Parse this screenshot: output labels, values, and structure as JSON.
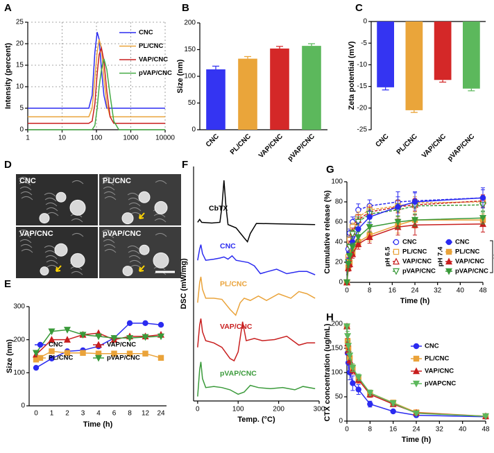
{
  "chart_data": [
    {
      "type": "line",
      "panel": "A",
      "ylabel": "Intensity (percent)",
      "xscale": "log",
      "x": [
        1,
        10,
        40,
        60,
        75,
        90,
        105,
        120,
        140,
        165,
        200,
        250,
        320,
        450,
        700,
        10000
      ],
      "xlim": [
        1,
        10000
      ],
      "xticks": [
        1,
        10,
        100,
        1000,
        10000
      ],
      "ylim": [
        0,
        25
      ],
      "yticks": [
        0,
        5,
        10,
        15,
        20,
        25
      ],
      "grid": true,
      "legend": "upper right",
      "series": [
        {
          "name": "CNC",
          "color": "#2b2bf0",
          "values": [
            5,
            5,
            5,
            5,
            8,
            18,
            22.7,
            21,
            14,
            8,
            5,
            5,
            5,
            5,
            5,
            5
          ]
        },
        {
          "name": "PL/CNC",
          "color": "#eaa33a",
          "values": [
            3,
            3,
            3,
            3,
            5,
            12,
            18,
            21,
            19,
            12,
            6,
            3,
            3,
            3,
            3,
            3
          ]
        },
        {
          "name": "VAP/CNC",
          "color": "#c81e1e",
          "values": [
            1.5,
            1.5,
            1.5,
            1.5,
            2,
            6,
            13,
            17.5,
            19,
            16,
            9,
            3,
            1.5,
            1.5,
            1.5,
            1.5
          ]
        },
        {
          "name": "pVAP/CNC",
          "color": "#44aa44",
          "values": [
            0,
            0,
            0,
            0,
            0,
            1,
            5,
            10,
            14,
            16.5,
            14,
            8,
            2,
            0,
            0,
            0
          ]
        }
      ]
    },
    {
      "type": "bar",
      "panel": "B",
      "ylabel": "Size (nm)",
      "categories": [
        "CNC",
        "PL/CNC",
        "VAP/CNC",
        "pVAP/CNC"
      ],
      "values": [
        113,
        133,
        152,
        157
      ],
      "errors": [
        6,
        4,
        4,
        4
      ],
      "colors": [
        "#3434f2",
        "#eaa53a",
        "#d42828",
        "#5cb85c"
      ],
      "ylim": [
        0,
        200
      ],
      "yticks": [
        0,
        50,
        100,
        150,
        200
      ]
    },
    {
      "type": "bar",
      "panel": "C",
      "ylabel": "Zeta potential (mV)",
      "categories": [
        "CNC",
        "PL/CNC",
        "VAP/CNC",
        "pVAP/CNC"
      ],
      "values": [
        -15.2,
        -20.5,
        -13.5,
        -15.5
      ],
      "errors": [
        0.6,
        0.5,
        0.5,
        0.5
      ],
      "colors": [
        "#3434f2",
        "#eaa53a",
        "#d42828",
        "#5cb85c"
      ],
      "ylim": [
        -25,
        0
      ],
      "yticks": [
        0,
        -5,
        -10,
        -15,
        -20,
        -25
      ]
    },
    {
      "type": "image",
      "panel": "D",
      "labels": [
        "CNC",
        "PL/CNC",
        "VAP/CNC",
        "pVAP/CNC"
      ]
    },
    {
      "type": "line",
      "panel": "E",
      "ylabel": "Size (nm)",
      "xlabel": "Time (h)",
      "categories": [
        "0",
        "1",
        "2",
        "3",
        "4",
        "6",
        "8",
        "12",
        "24"
      ],
      "ylim": [
        0,
        300
      ],
      "yticks": [
        0,
        100,
        200,
        300
      ],
      "legend": "upper left",
      "series": [
        {
          "name": "CNC",
          "color": "#2b2bf0",
          "marker": "circle",
          "values": [
            115,
            143,
            165,
            168,
            180,
            205,
            250,
            250,
            245
          ]
        },
        {
          "name": "PL/CNC",
          "color": "#eaa33a",
          "marker": "square",
          "values": [
            140,
            165,
            160,
            160,
            158,
            158,
            158,
            158,
            145
          ]
        },
        {
          "name": "VAP/CNC",
          "color": "#c81e1e",
          "marker": "triangle",
          "values": [
            155,
            200,
            200,
            215,
            220,
            200,
            210,
            210,
            215
          ]
        },
        {
          "name": "pVAP/CNC",
          "color": "#3a9a3a",
          "marker": "triangle-down",
          "values": [
            160,
            225,
            230,
            215,
            210,
            205,
            205,
            208,
            210
          ]
        }
      ]
    },
    {
      "type": "line",
      "panel": "F",
      "ylabel": "DSC (mW/mg)",
      "xlabel": "Temp. (°C)",
      "xlim": [
        -10,
        300
      ],
      "xticks": [
        0,
        100,
        200,
        300
      ],
      "ylim": [
        0,
        105
      ],
      "labels": "inline",
      "series": [
        {
          "name": "CbTX",
          "color": "#000000",
          "x": [
            0,
            5,
            10,
            35,
            55,
            60,
            65,
            70,
            75,
            95,
            115,
            123,
            130,
            145,
            290
          ],
          "values": [
            80,
            81.3,
            80,
            79.7,
            80,
            87,
            98.8,
            87,
            79,
            77.5,
            73,
            71.3,
            75,
            79.5,
            79
          ]
        },
        {
          "name": "CNC",
          "color": "#2b2bf0",
          "x": [
            0,
            5,
            8,
            12,
            20,
            40,
            55,
            65,
            75,
            85,
            95,
            110,
            125,
            140,
            155,
            170,
            195,
            220,
            250,
            270,
            290
          ],
          "values": [
            63,
            68,
            70,
            66,
            63,
            63.5,
            64,
            64.5,
            63.5,
            65,
            63,
            62.5,
            62,
            60.5,
            57,
            57.8,
            59,
            57,
            58,
            58,
            56.5
          ]
        },
        {
          "name": "PL/CNC",
          "color": "#eaa33a",
          "x": [
            0,
            5,
            8,
            12,
            20,
            40,
            60,
            80,
            94,
            105,
            115,
            130,
            150,
            170,
            200,
            230,
            250,
            270,
            290
          ],
          "values": [
            44,
            53,
            55.6,
            50,
            46,
            46,
            45.5,
            41,
            38.4,
            44,
            46,
            45,
            47,
            45,
            48,
            46,
            49,
            48,
            46
          ]
        },
        {
          "name": "VAP/CNC",
          "color": "#c81e1e",
          "x": [
            0,
            5,
            8,
            12,
            20,
            40,
            60,
            80,
            90,
            100,
            111,
            120,
            140,
            160,
            190,
            220,
            250,
            270,
            290
          ],
          "values": [
            24,
            34,
            36.9,
            31,
            27,
            26,
            24,
            19,
            18,
            22,
            35.5,
            27,
            28,
            27,
            27.5,
            29,
            25,
            26,
            26
          ]
        },
        {
          "name": "pVAP/CNC",
          "color": "#3a9a3a",
          "x": [
            0,
            5,
            8,
            12,
            20,
            40,
            60,
            80,
            100,
            115,
            130,
            150,
            180,
            210,
            240,
            260,
            290
          ],
          "values": [
            2,
            14,
            17.5,
            10,
            6,
            6.5,
            6,
            5,
            3,
            4,
            7,
            6,
            5.5,
            6,
            5,
            6.5,
            5.5
          ]
        }
      ]
    },
    {
      "type": "line",
      "panel": "G",
      "ylabel": "Cumulative release (%)",
      "xlabel": "Time (h)",
      "x": [
        0,
        0.5,
        1,
        2,
        4,
        8,
        18,
        24,
        48
      ],
      "xlim": [
        0,
        48
      ],
      "xticks": [
        0,
        8,
        16,
        24,
        32,
        40,
        48
      ],
      "ylim": [
        0,
        100
      ],
      "yticks": [
        0,
        20,
        40,
        60,
        80,
        100
      ],
      "legend": "lower right",
      "legend_groups": [
        "pH 6.5",
        "pH 7.4"
      ],
      "annotation": "**",
      "series": [
        {
          "name": "CNC",
          "color": "#2b2bf0",
          "marker": "circle",
          "marker_fill": "open",
          "linestyle": "dashed",
          "values": [
            0,
            33,
            49,
            60,
            72,
            76,
            80,
            81,
            84
          ],
          "errors": [
            0,
            3,
            4,
            5,
            6,
            6,
            10,
            8,
            8
          ]
        },
        {
          "name": "PL/CNC",
          "color": "#eaa33a",
          "marker": "square",
          "marker_fill": "open",
          "linestyle": "dashed",
          "values": [
            0,
            25,
            42,
            55,
            65,
            72,
            76,
            79,
            80
          ],
          "errors": [
            0,
            3,
            4,
            4,
            5,
            5,
            6,
            6,
            6
          ]
        },
        {
          "name": "VAP/CNC",
          "color": "#c81e1e",
          "marker": "triangle",
          "marker_fill": "open",
          "linestyle": "dashed",
          "values": [
            0,
            22,
            38,
            50,
            62,
            70,
            75,
            77,
            81
          ],
          "errors": [
            0,
            3,
            3,
            4,
            5,
            5,
            6,
            6,
            6
          ]
        },
        {
          "name": "pVAP/CNC",
          "color": "#3a9a3a",
          "marker": "triangle-down",
          "marker_fill": "open",
          "linestyle": "dashed",
          "values": [
            0,
            20,
            35,
            48,
            60,
            68,
            72,
            76,
            77
          ],
          "errors": [
            0,
            3,
            3,
            4,
            5,
            5,
            6,
            6,
            6
          ]
        },
        {
          "name": "CNC",
          "color": "#2b2bf0",
          "marker": "circle",
          "marker_fill": "filled",
          "linestyle": "solid",
          "values": [
            0,
            20,
            28,
            40,
            53,
            65,
            75,
            80,
            84
          ],
          "errors": [
            0,
            4,
            4,
            5,
            6,
            6,
            10,
            10,
            10
          ]
        },
        {
          "name": "PL/CNC",
          "color": "#eaa33a",
          "marker": "square",
          "marker_fill": "filled",
          "linestyle": "solid",
          "values": [
            0,
            15,
            20,
            30,
            40,
            47,
            57,
            62,
            62
          ],
          "errors": [
            0,
            3,
            3,
            4,
            5,
            6,
            8,
            8,
            6
          ]
        },
        {
          "name": "VAP/CNC",
          "color": "#c81e1e",
          "marker": "triangle",
          "marker_fill": "filled",
          "linestyle": "solid",
          "values": [
            0,
            14,
            18,
            28,
            38,
            45,
            55,
            57,
            58
          ],
          "errors": [
            0,
            3,
            3,
            4,
            5,
            6,
            8,
            10,
            8
          ]
        },
        {
          "name": "pVAP/CNC",
          "color": "#3a9a3a",
          "marker": "triangle-down",
          "marker_fill": "filled",
          "linestyle": "solid",
          "values": [
            0,
            18,
            26,
            35,
            45,
            55,
            60,
            62,
            64
          ],
          "errors": [
            0,
            3,
            3,
            4,
            5,
            5,
            6,
            6,
            6
          ]
        }
      ]
    },
    {
      "type": "line",
      "panel": "H",
      "ylabel": "CTX concentration (ug/mL)",
      "xlabel": "Time (h)",
      "x": [
        0,
        0.25,
        0.5,
        1,
        2,
        4,
        8,
        16,
        24,
        48
      ],
      "xlim": [
        0,
        48
      ],
      "xticks": [
        0,
        8,
        16,
        24,
        32,
        40,
        48
      ],
      "ylim": [
        0,
        200
      ],
      "yticks": [
        0,
        50,
        100,
        150,
        200
      ],
      "legend": "upper right",
      "series": [
        {
          "name": "CNC",
          "color": "#2b2bf0",
          "marker": "circle",
          "marker_fill": "filled",
          "values": [
            195,
            140,
            120,
            100,
            78,
            65,
            35,
            20,
            12,
            9
          ],
          "errors": [
            5,
            20,
            18,
            15,
            15,
            10,
            6,
            3,
            2,
            2
          ]
        },
        {
          "name": "PL/CNC",
          "color": "#eaa33a",
          "marker": "square",
          "marker_fill": "filled",
          "values": [
            195,
            165,
            150,
            130,
            108,
            88,
            58,
            38,
            18,
            10
          ],
          "errors": [
            5,
            10,
            10,
            8,
            8,
            7,
            6,
            5,
            3,
            2
          ]
        },
        {
          "name": "VAP/CNC",
          "color": "#c81e1e",
          "marker": "triangle",
          "marker_fill": "filled",
          "values": [
            195,
            160,
            145,
            125,
            105,
            85,
            55,
            35,
            17,
            10
          ],
          "errors": [
            5,
            10,
            10,
            8,
            8,
            7,
            6,
            5,
            3,
            2
          ]
        },
        {
          "name": "pVAPCNC",
          "color": "#5cb85c",
          "marker": "triangle-down",
          "marker_fill": "filled",
          "values": [
            195,
            175,
            155,
            135,
            110,
            90,
            58,
            37,
            16,
            10
          ],
          "errors": [
            5,
            10,
            10,
            8,
            8,
            7,
            6,
            5,
            3,
            2
          ]
        }
      ]
    }
  ]
}
